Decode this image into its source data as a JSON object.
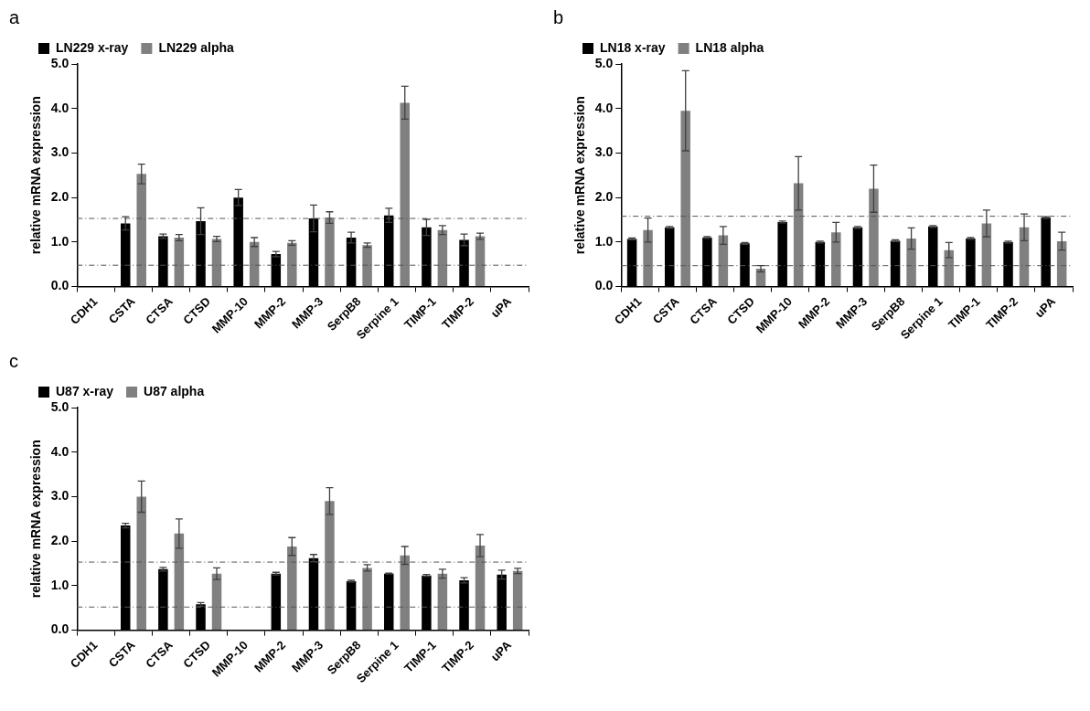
{
  "chart_data": [
    {
      "type": "bar",
      "annotations": [
        "a"
      ],
      "ylabel": "relative mRNA expression",
      "categories": [
        "CDH1",
        "CSTA",
        "CTSA",
        "CTSD",
        "MMP-10",
        "MMP-2",
        "MMP-3",
        "SerpB8",
        "Serpine 1",
        "TIMP-1",
        "TIMP-2",
        "uPA"
      ],
      "series": [
        {
          "name": "LN229 x-ray",
          "color": "#000000",
          "values": [
            null,
            1.42,
            1.13,
            1.47,
            2.0,
            0.73,
            1.53,
            1.1,
            1.6,
            1.33,
            1.05,
            null
          ],
          "errors": [
            null,
            0.15,
            0.05,
            0.3,
            0.18,
            0.06,
            0.3,
            0.12,
            0.16,
            0.18,
            0.13,
            null
          ]
        },
        {
          "name": "LN229 alpha",
          "color": "#808080",
          "values": [
            null,
            2.53,
            1.1,
            1.07,
            1.0,
            0.98,
            1.55,
            0.93,
            4.13,
            1.27,
            1.13,
            null
          ],
          "errors": [
            null,
            0.22,
            0.07,
            0.06,
            0.1,
            0.05,
            0.13,
            0.05,
            0.37,
            0.1,
            0.07,
            null
          ]
        }
      ],
      "ylim": [
        0,
        5
      ],
      "yticks": [
        {
          "value": 0,
          "label": "0.0"
        },
        {
          "value": 1,
          "label": "1.0"
        },
        {
          "value": 2,
          "label": "2.0"
        },
        {
          "value": 3,
          "label": "3.0"
        },
        {
          "value": 4,
          "label": "4.0"
        },
        {
          "value": 5,
          "label": "5.0"
        }
      ],
      "ref_lines": [
        {
          "axis": "y",
          "value": 1.53,
          "color": "#555555",
          "line_style": "dashed"
        },
        {
          "axis": "y",
          "value": 0.48,
          "color": "#555555",
          "line_style": "dashed"
        }
      ],
      "grid": false,
      "legend": "top"
    },
    {
      "type": "bar",
      "annotations": [
        "b"
      ],
      "ylabel": "relative mRNA expression",
      "categories": [
        "CDH1",
        "CSTA",
        "CTSA",
        "CTSD",
        "MMP-10",
        "MMP-2",
        "MMP-3",
        "SerpB8",
        "Serpine 1",
        "TIMP-1",
        "TIMP-2",
        "uPA"
      ],
      "series": [
        {
          "name": "LN18 x-ray",
          "color": "#000000",
          "values": [
            1.07,
            1.33,
            1.1,
            0.97,
            1.45,
            1.0,
            1.33,
            1.03,
            1.35,
            1.08,
            1.0,
            1.55
          ],
          "errors": [
            0.02,
            0.02,
            0.02,
            0.02,
            0.02,
            0.02,
            0.02,
            0.02,
            0.02,
            0.02,
            0.02,
            0.02
          ]
        },
        {
          "name": "LN18 alpha",
          "color": "#808080",
          "values": [
            1.27,
            3.95,
            1.15,
            0.4,
            2.32,
            1.22,
            2.2,
            1.08,
            0.82,
            1.42,
            1.33,
            1.02
          ],
          "errors": [
            0.27,
            0.9,
            0.2,
            0.07,
            0.6,
            0.22,
            0.53,
            0.24,
            0.17,
            0.3,
            0.3,
            0.2
          ]
        }
      ],
      "ylim": [
        0,
        5
      ],
      "yticks": [
        {
          "value": 0,
          "label": "0.0"
        },
        {
          "value": 1,
          "label": "1.0"
        },
        {
          "value": 2,
          "label": "2.0"
        },
        {
          "value": 3,
          "label": "3.0"
        },
        {
          "value": 4,
          "label": "4.0"
        },
        {
          "value": 5,
          "label": "5.0"
        }
      ],
      "ref_lines": [
        {
          "axis": "y",
          "value": 1.58,
          "color": "#555555",
          "line_style": "dashed"
        },
        {
          "axis": "y",
          "value": 0.47,
          "color": "#555555",
          "line_style": "dashed"
        }
      ],
      "grid": false,
      "legend": "top"
    },
    {
      "type": "bar",
      "annotations": [
        "c"
      ],
      "ylabel": "relative mRNA expression",
      "categories": [
        "CDH1",
        "CSTA",
        "CTSA",
        "CTSD",
        "MMP-10",
        "MMP-2",
        "MMP-3",
        "SerpB8",
        "Serpine 1",
        "TIMP-1",
        "TIMP-2",
        "uPA"
      ],
      "series": [
        {
          "name": "U87 x-ray",
          "color": "#000000",
          "values": [
            null,
            2.35,
            1.37,
            0.58,
            null,
            1.27,
            1.62,
            1.1,
            1.27,
            1.23,
            1.12,
            1.25
          ],
          "errors": [
            null,
            0.05,
            0.04,
            0.04,
            null,
            0.03,
            0.08,
            0.02,
            0.01,
            0.02,
            0.06,
            0.1
          ]
        },
        {
          "name": "U87 alpha",
          "color": "#808080",
          "values": [
            null,
            3.0,
            2.17,
            1.27,
            null,
            1.88,
            2.9,
            1.4,
            1.68,
            1.27,
            1.9,
            1.33
          ],
          "errors": [
            null,
            0.35,
            0.33,
            0.13,
            null,
            0.2,
            0.3,
            0.07,
            0.2,
            0.1,
            0.25,
            0.06
          ]
        }
      ],
      "ylim": [
        0,
        5
      ],
      "yticks": [
        {
          "value": 0,
          "label": "0.0"
        },
        {
          "value": 1,
          "label": "1.0"
        },
        {
          "value": 2,
          "label": "2.0"
        },
        {
          "value": 3,
          "label": "3.0"
        },
        {
          "value": 4,
          "label": "4.0"
        },
        {
          "value": 5,
          "label": "5.0"
        }
      ],
      "ref_lines": [
        {
          "axis": "y",
          "value": 1.53,
          "color": "#555555",
          "line_style": "dashed"
        },
        {
          "axis": "y",
          "value": 0.52,
          "color": "#555555",
          "line_style": "dashed"
        }
      ],
      "grid": false,
      "legend": "top"
    }
  ]
}
